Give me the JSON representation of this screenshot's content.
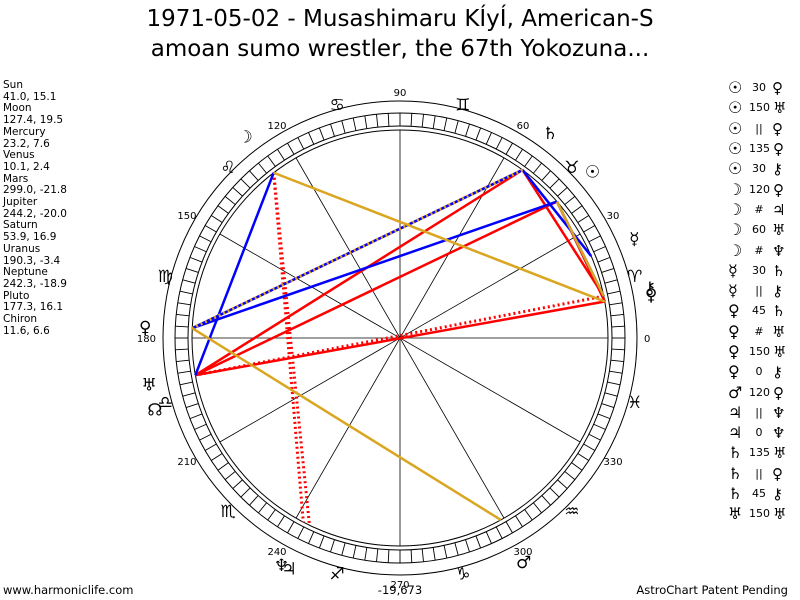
{
  "title_line1": "1971-05-02 - Musashimaru KÍyÍ, American-S",
  "title_line2": "amoan sumo wrestler, the 67th Yokozuna...",
  "planet_list": [
    {
      "name": "Sun",
      "value": "41.0, 15.1"
    },
    {
      "name": "Moon",
      "value": "127.4, 19.5"
    },
    {
      "name": "Mercury",
      "value": "23.2, 7.6"
    },
    {
      "name": "Venus",
      "value": "10.1, 2.4"
    },
    {
      "name": "Mars",
      "value": "299.0, -21.8"
    },
    {
      "name": "Jupiter",
      "value": "244.2, -20.0"
    },
    {
      "name": "Saturn",
      "value": "53.9, 16.9"
    },
    {
      "name": "Uranus",
      "value": "190.3, -3.4"
    },
    {
      "name": "Neptune",
      "value": "242.3, -18.9"
    },
    {
      "name": "Pluto",
      "value": "177.3, 16.1"
    },
    {
      "name": "Chiron",
      "value": "11.6, 6.6"
    }
  ],
  "aspect_list": [
    {
      "g1": "☉",
      "mid": "30",
      "g2": "♀"
    },
    {
      "g1": "☉",
      "mid": "150",
      "g2": "♅"
    },
    {
      "g1": "☉",
      "mid": "||",
      "g2": "♀"
    },
    {
      "g1": "☉",
      "mid": "135",
      "g2": "♀"
    },
    {
      "g1": "☉",
      "mid": "30",
      "g2": "⚷"
    },
    {
      "g1": "☽",
      "mid": "120",
      "g2": "♀"
    },
    {
      "g1": "☽",
      "mid": "#",
      "g2": "♃"
    },
    {
      "g1": "☽",
      "mid": "60",
      "g2": "♅"
    },
    {
      "g1": "☽",
      "mid": "#",
      "g2": "♆"
    },
    {
      "g1": "☿",
      "mid": "30",
      "g2": "♄"
    },
    {
      "g1": "☿",
      "mid": "||",
      "g2": "⚷"
    },
    {
      "g1": "♀",
      "mid": "45",
      "g2": "♄"
    },
    {
      "g1": "♀",
      "mid": "#",
      "g2": "♅"
    },
    {
      "g1": "♀",
      "mid": "150",
      "g2": "♅"
    },
    {
      "g1": "♀",
      "mid": "0",
      "g2": "⚷"
    },
    {
      "g1": "♂",
      "mid": "120",
      "g2": "♀"
    },
    {
      "g1": "♃",
      "mid": "||",
      "g2": "♆"
    },
    {
      "g1": "♃",
      "mid": "0",
      "g2": "♆"
    },
    {
      "g1": "♄",
      "mid": "135",
      "g2": "♅"
    },
    {
      "g1": "♄",
      "mid": "||",
      "g2": "♀"
    },
    {
      "g1": "♄",
      "mid": "45",
      "g2": "⚷"
    },
    {
      "g1": "♅",
      "mid": "150",
      "g2": "♅"
    }
  ],
  "footer": {
    "left": "www.harmoniclife.com",
    "center": "-19,673",
    "right": "AstroChart Patent Pending"
  },
  "chart_data": {
    "type": "astrological-wheel",
    "degree_labels": [
      {
        "deg": 0,
        "label": "0"
      },
      {
        "deg": 30,
        "label": "30"
      },
      {
        "deg": 60,
        "label": "60"
      },
      {
        "deg": 90,
        "label": "90"
      },
      {
        "deg": 120,
        "label": "120"
      },
      {
        "deg": 150,
        "label": "150"
      },
      {
        "deg": 180,
        "label": "180"
      },
      {
        "deg": 210,
        "label": "210"
      },
      {
        "deg": 240,
        "label": "240"
      },
      {
        "deg": 270,
        "label": "270"
      },
      {
        "deg": 300,
        "label": "300"
      },
      {
        "deg": 330,
        "label": "330"
      }
    ],
    "signs": [
      {
        "deg": 15,
        "glyph": "♈"
      },
      {
        "deg": 45,
        "glyph": "♉"
      },
      {
        "deg": 75,
        "glyph": "♊"
      },
      {
        "deg": 105,
        "glyph": "♋"
      },
      {
        "deg": 135,
        "glyph": "♌"
      },
      {
        "deg": 165,
        "glyph": "♍"
      },
      {
        "deg": 195,
        "glyph": "♎"
      },
      {
        "deg": 225,
        "glyph": "♏"
      },
      {
        "deg": 255,
        "glyph": "♐"
      },
      {
        "deg": 285,
        "glyph": "♑"
      },
      {
        "deg": 315,
        "glyph": "♒"
      },
      {
        "deg": 345,
        "glyph": "♓"
      }
    ],
    "planets": [
      {
        "name": "Sun",
        "glyph": "☉",
        "deg": 41.0
      },
      {
        "name": "Moon",
        "glyph": "☽",
        "deg": 127.4
      },
      {
        "name": "Mercury",
        "glyph": "☿",
        "deg": 23.2
      },
      {
        "name": "Venus",
        "glyph": "♀",
        "deg": 10.1
      },
      {
        "name": "Mars",
        "glyph": "♂",
        "deg": 299.0
      },
      {
        "name": "Jupiter",
        "glyph": "♃",
        "deg": 244.2
      },
      {
        "name": "Saturn",
        "glyph": "♄",
        "deg": 53.9
      },
      {
        "name": "Uranus",
        "glyph": "♅",
        "deg": 190.3
      },
      {
        "name": "Neptune",
        "glyph": "♆",
        "deg": 242.3
      },
      {
        "name": "Pluto",
        "glyph": "♀",
        "deg": 177.3
      },
      {
        "name": "Chiron",
        "glyph": "⚷",
        "deg": 11.6
      },
      {
        "name": "Node",
        "glyph": "☊",
        "deg": 196.0
      }
    ],
    "aspect_lines": [
      {
        "from": 53.9,
        "to": 177.3,
        "color": "#ff0000",
        "style": "solid"
      },
      {
        "from": 53.9,
        "to": 11.6,
        "color": "#ff0000",
        "style": "solid"
      },
      {
        "from": 41.0,
        "to": 190.3,
        "color": "#ff0000",
        "style": "solid"
      },
      {
        "from": 41.0,
        "to": 10.1,
        "color": "#ff0000",
        "style": "solid"
      },
      {
        "from": 10.1,
        "to": 190.3,
        "color": "#ff0000",
        "style": "solid"
      },
      {
        "from": 11.6,
        "to": 190.3,
        "color": "#ff0000",
        "style": "dotted"
      },
      {
        "from": 127.4,
        "to": 244.2,
        "color": "#ff0000",
        "style": "dotted"
      },
      {
        "from": 127.4,
        "to": 242.3,
        "color": "#ff0000",
        "style": "dotted"
      },
      {
        "from": 53.9,
        "to": 190.3,
        "color": "#ff0000",
        "style": "solid"
      },
      {
        "from": 127.4,
        "to": 190.3,
        "color": "#0000ff",
        "style": "solid"
      },
      {
        "from": 41.0,
        "to": 177.3,
        "color": "#0000ff",
        "style": "solid"
      },
      {
        "from": 53.9,
        "to": 177.3,
        "color": "#0000ff",
        "style": "solid"
      },
      {
        "from": 41.0,
        "to": 11.6,
        "color": "#0000ff",
        "style": "solid"
      },
      {
        "from": 53.9,
        "to": 23.2,
        "color": "#0000ff",
        "style": "solid"
      },
      {
        "from": 127.4,
        "to": 10.1,
        "color": "#daa520",
        "style": "solid"
      },
      {
        "from": 53.9,
        "to": 177.3,
        "color": "#daa520",
        "style": "dotted"
      },
      {
        "from": 177.3,
        "to": 299.0,
        "color": "#daa520",
        "style": "solid"
      },
      {
        "from": 41.0,
        "to": 11.6,
        "color": "#daa520",
        "style": "solid"
      }
    ]
  }
}
